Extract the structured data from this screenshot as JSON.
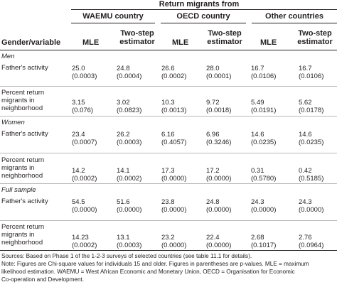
{
  "table": {
    "spanner": "Return migrants from",
    "row_header": "Gender/variable",
    "groups": [
      "WAEMU country",
      "OECD country",
      "Other countries"
    ],
    "subcols": [
      [
        "MLE"
      ],
      [
        "Two-step",
        "estimator"
      ],
      [
        "MLE"
      ],
      [
        "Two-step",
        "estimator"
      ],
      [
        "MLE"
      ],
      [
        "Two-step",
        "estimator"
      ]
    ],
    "sections": [
      {
        "name": "Men",
        "rows": [
          {
            "label": [
              "Father's activity"
            ],
            "cells": [
              [
                "25.0",
                "(0.0003)"
              ],
              [
                "24.8",
                "(0.0004)"
              ],
              [
                "26.6",
                "(0.0002)"
              ],
              [
                "28.0",
                "(0.0001)"
              ],
              [
                "16.7",
                "(0.0106)"
              ],
              [
                "16.7",
                "(0.0106)"
              ]
            ]
          },
          {
            "label": [
              "Percent return",
              "migrants in",
              "neighborhood"
            ],
            "cells": [
              [
                "3.15",
                "(0.076)"
              ],
              [
                "3.02",
                "(0.0823)"
              ],
              [
                "10.3",
                "(0.0013)"
              ],
              [
                "9.72",
                "(0.0018)"
              ],
              [
                "5.49",
                "(0.0191)"
              ],
              [
                "5.62",
                "(0.0178)"
              ]
            ]
          }
        ]
      },
      {
        "name": "Women",
        "rows": [
          {
            "label": [
              "Father's activity"
            ],
            "cells": [
              [
                "23.4",
                "(0.0007)"
              ],
              [
                "26.2",
                "(0.0003)"
              ],
              [
                "6.16",
                "(0.4057)"
              ],
              [
                "6.96",
                "(0.3246)"
              ],
              [
                "14.6",
                "(0.0235)"
              ],
              [
                "14.6",
                "(0.0235)"
              ]
            ]
          },
          {
            "label": [
              "Percent return",
              "migrants in",
              "neighborhood"
            ],
            "cells": [
              [
                "14.2",
                "(0.0002)"
              ],
              [
                "14.1",
                "(0.0002)"
              ],
              [
                "17.3",
                "(0.0000)"
              ],
              [
                "17.2",
                "(0.0000)"
              ],
              [
                "0.31",
                "(0.5780)"
              ],
              [
                "0.42",
                "(0.5185)"
              ]
            ]
          }
        ]
      },
      {
        "name": "Full sample",
        "rows": [
          {
            "label": [
              "Father's activity"
            ],
            "cells": [
              [
                "54.5",
                "(0.0000)"
              ],
              [
                "51.6",
                "(0.0000)"
              ],
              [
                "23.8",
                "(0.0000)"
              ],
              [
                "24.8",
                "(0.0000)"
              ],
              [
                "24.3",
                "(0.0000)"
              ],
              [
                "24.3",
                "(0.0000)"
              ]
            ]
          },
          {
            "label": [
              "Percent return",
              "migrants in",
              "neighborhood"
            ],
            "cells": [
              [
                "14.23",
                "(0.0002)"
              ],
              [
                "13.1",
                "(0.0003)"
              ],
              [
                "23.2",
                "(0.0000)"
              ],
              [
                "22.4",
                "(0.0000)"
              ],
              [
                "2.68",
                "(0.1017)"
              ],
              [
                "2.76",
                "(0.0964)"
              ]
            ]
          }
        ]
      }
    ],
    "notes": [
      "Sources: Based on Phase 1 of the 1-2-3 surveys of selected countries (see table 11.1 for details).",
      "Note: Figures are Chi-square values for individuals 15 and older. Figures in parentheses are p-values. MLE = maximum",
      "likelihood estimation. WAEMU = West African Economic and Monetary Union, OECD = Organisation for Economic",
      "Co-operation and Development."
    ]
  }
}
